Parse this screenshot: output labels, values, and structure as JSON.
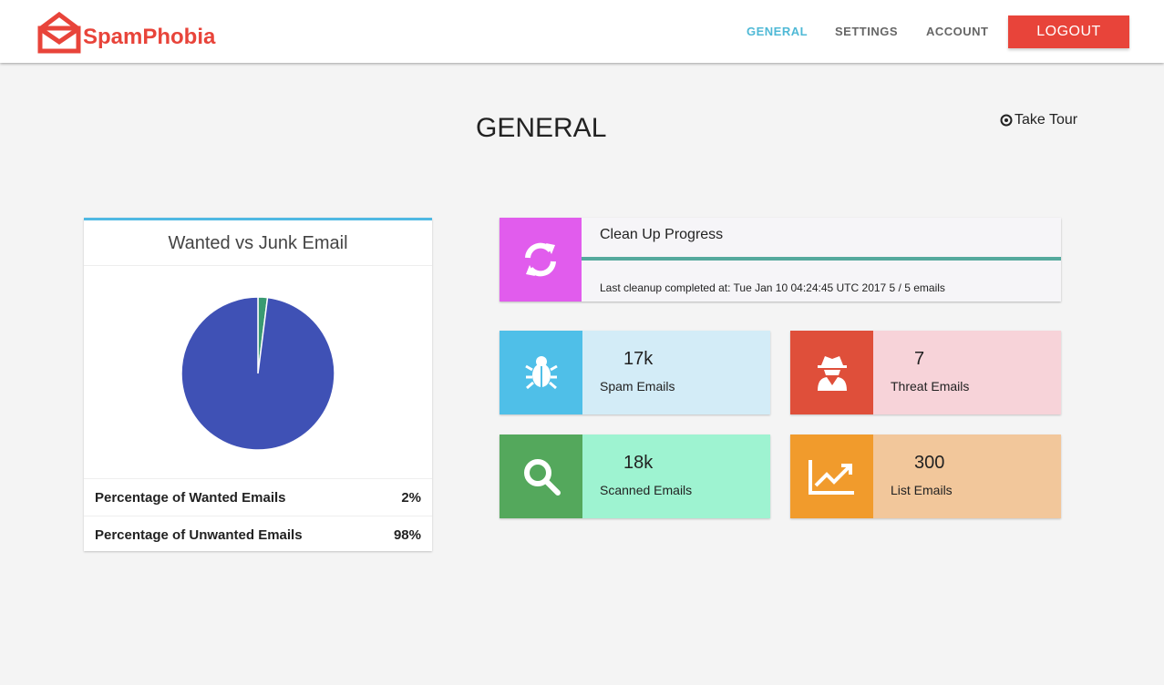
{
  "brand": {
    "name": "SpamPhobia",
    "color": "#e8443a"
  },
  "nav": {
    "items": [
      {
        "label": "GENERAL",
        "active": true
      },
      {
        "label": "SETTINGS"
      },
      {
        "label": "ACCOUNT"
      }
    ],
    "logout": "LOGOUT",
    "active_color": "#4fb9d6"
  },
  "page": {
    "title": "GENERAL",
    "tour": "Take Tour"
  },
  "pie_card": {
    "title": "Wanted vs Junk Email",
    "rows": [
      {
        "label": "Percentage of Wanted Emails",
        "value": "2%"
      },
      {
        "label": "Percentage of Unwanted Emails",
        "value": "98%"
      }
    ]
  },
  "chart_data": {
    "type": "pie",
    "title": "Wanted vs Junk Email",
    "slices": [
      {
        "label": "Wanted",
        "value": 2,
        "color": "#3a9a72"
      },
      {
        "label": "Unwanted",
        "value": 98,
        "color": "#3f51b5"
      }
    ]
  },
  "progress": {
    "title": "Clean Up Progress",
    "status": "Last cleanup completed at: Tue Jan 10 04:24:45 UTC 2017 5 / 5 emails",
    "percent": 100,
    "icon": "refresh-icon"
  },
  "stats": [
    {
      "value": "17k",
      "label": "Spam Emails",
      "icon": "bug-icon",
      "icon_color": "#4fbfe8",
      "bg": "#d3ecf7"
    },
    {
      "value": "7",
      "label": "Threat Emails",
      "icon": "spy-icon",
      "icon_color": "#df4f3a",
      "bg": "#f7d3d9"
    },
    {
      "value": "18k",
      "label": "Scanned Emails",
      "icon": "search-icon",
      "icon_color": "#54a85c",
      "bg": "#9ef3d1"
    },
    {
      "value": "300",
      "label": "List Emails",
      "icon": "line-chart-icon",
      "icon_color": "#f19b2c",
      "bg": "#f2c79b"
    }
  ]
}
